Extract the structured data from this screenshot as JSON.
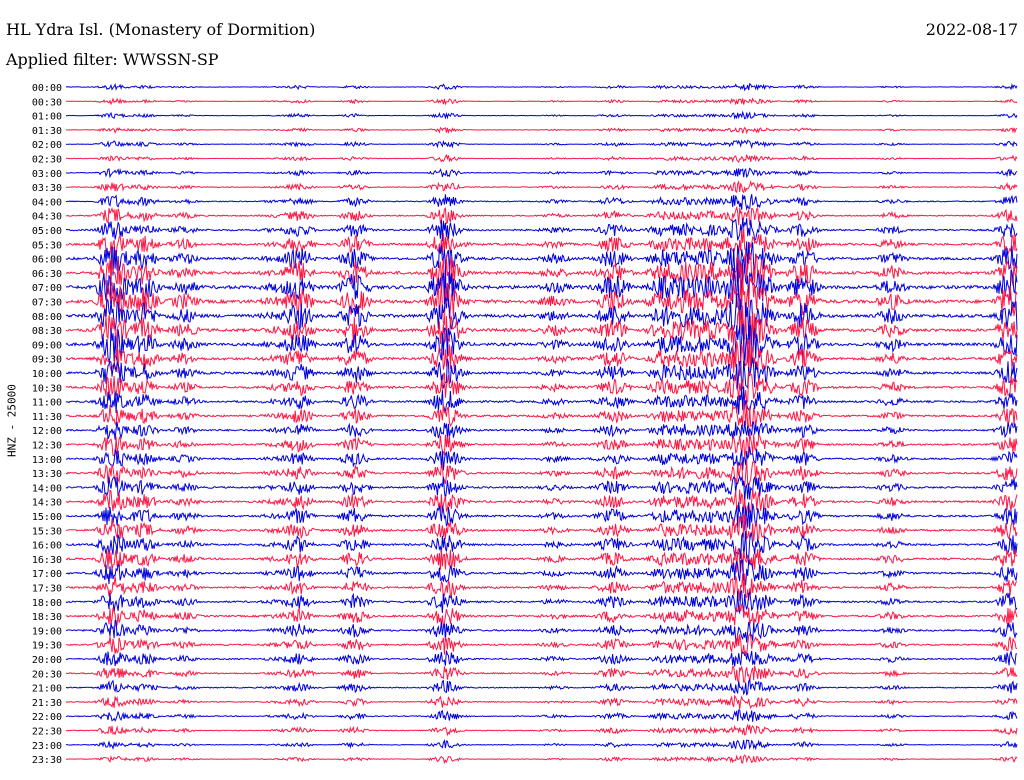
{
  "header": {
    "station": "HL Ydra Isl. (Monastery of Dormition)",
    "date": "2022-08-17",
    "filter": "Applied filter: WWSSN-SP"
  },
  "chart_data": {
    "type": "line",
    "title": "HL Ydra Isl. (Monastery of Dormition)",
    "ylabel": "HNZ - 25000",
    "xlabel": "",
    "trace_colors": [
      "#0000dd",
      "#ff1744"
    ],
    "row_labels": [
      "00:00",
      "00:30",
      "01:00",
      "01:30",
      "02:00",
      "02:30",
      "03:00",
      "03:30",
      "04:00",
      "04:30",
      "05:00",
      "05:30",
      "06:00",
      "06:30",
      "07:00",
      "07:30",
      "08:00",
      "08:30",
      "09:00",
      "09:30",
      "10:00",
      "10:30",
      "11:00",
      "11:30",
      "12:00",
      "12:30",
      "13:00",
      "13:30",
      "14:00",
      "14:30",
      "15:00",
      "15:30",
      "16:00",
      "16:30",
      "17:00",
      "17:30",
      "18:00",
      "18:30",
      "19:00",
      "19:30",
      "20:00",
      "20:30",
      "21:00",
      "21:30",
      "22:00",
      "22:30",
      "23:00",
      "23:30"
    ],
    "noise_level": [
      0.2,
      0.2,
      0.2,
      0.2,
      0.25,
      0.25,
      0.3,
      0.35,
      0.5,
      0.6,
      0.8,
      1,
      1.2,
      1.4,
      1.6,
      1.6,
      1.5,
      1.4,
      1.3,
      1.2,
      1.1,
      1,
      0.9,
      0.85,
      0.8,
      0.8,
      0.8,
      0.85,
      0.85,
      0.9,
      0.9,
      0.9,
      0.9,
      0.9,
      0.85,
      0.85,
      0.8,
      0.8,
      0.75,
      0.7,
      0.65,
      0.6,
      0.5,
      0.45,
      0.4,
      0.35,
      0.3,
      0.25
    ]
  }
}
